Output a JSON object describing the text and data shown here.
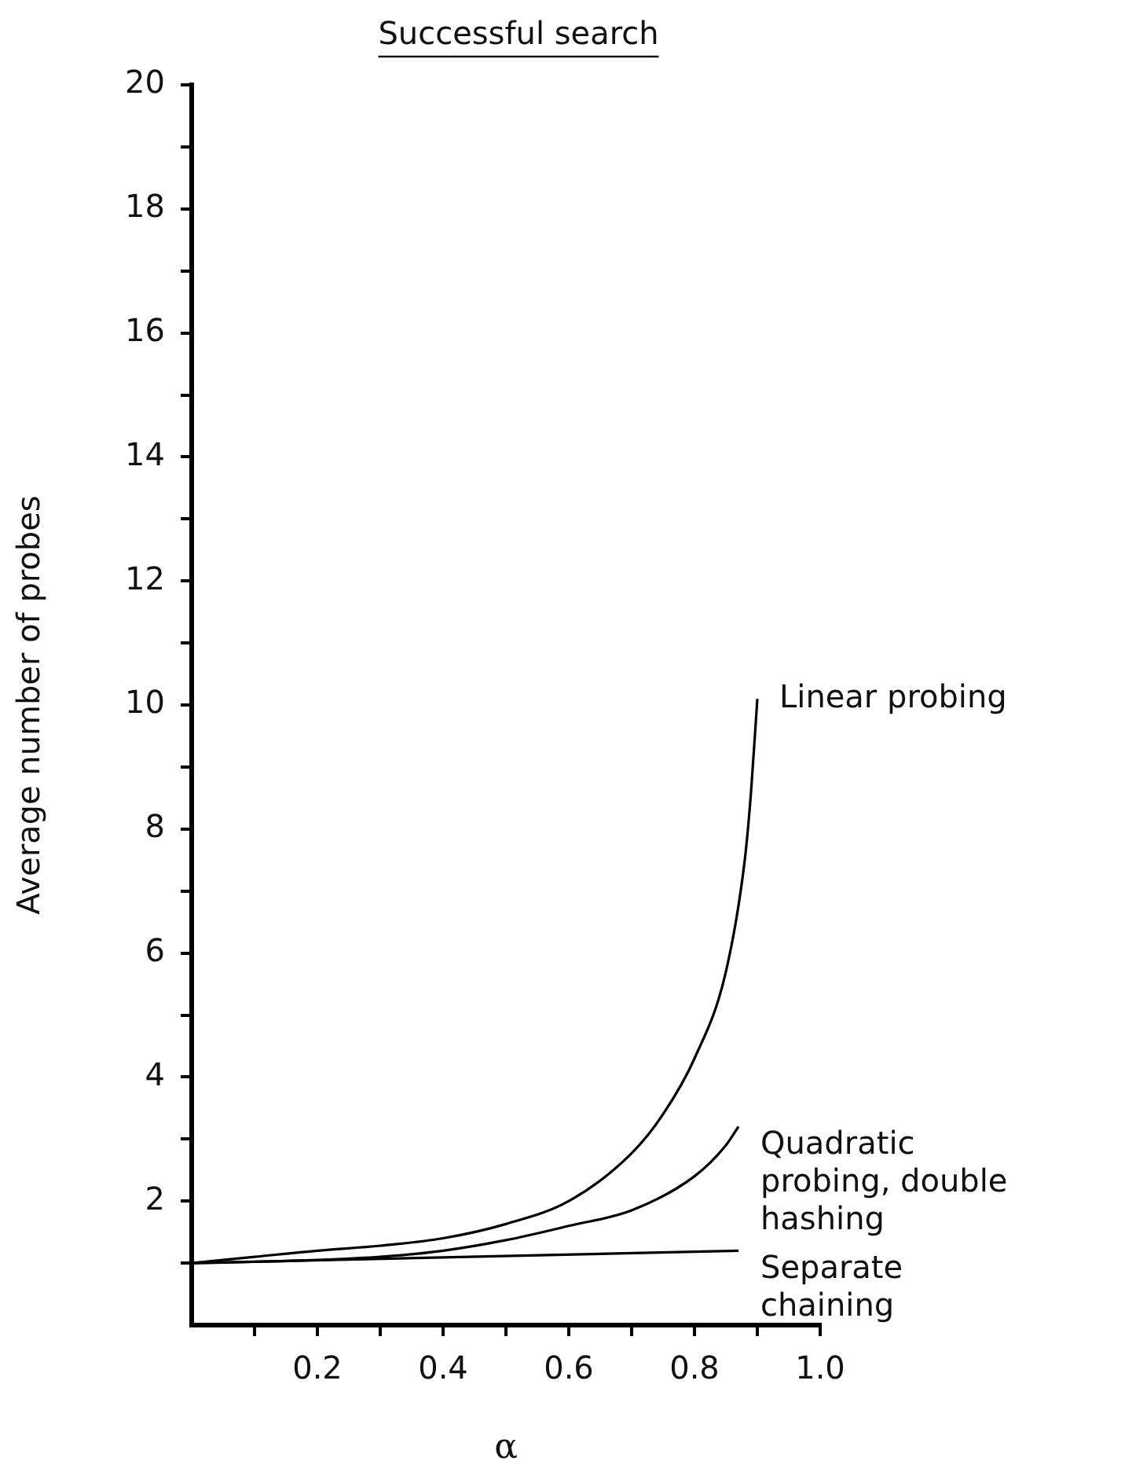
{
  "chart_data": {
    "type": "line",
    "title": "Successful search",
    "xlabel": "α",
    "ylabel": "Average number of probes",
    "xlim": [
      0,
      1.0
    ],
    "ylim": [
      0,
      20
    ],
    "xticks": [
      {
        "value": 0.1,
        "label": null
      },
      {
        "value": 0.2,
        "label": "0.2"
      },
      {
        "value": 0.3,
        "label": null
      },
      {
        "value": 0.4,
        "label": "0.4"
      },
      {
        "value": 0.5,
        "label": null
      },
      {
        "value": 0.6,
        "label": "0.6"
      },
      {
        "value": 0.7,
        "label": null
      },
      {
        "value": 0.8,
        "label": "0.8"
      },
      {
        "value": 0.9,
        "label": null
      },
      {
        "value": 1.0,
        "label": "1.0"
      }
    ],
    "yticks": [
      {
        "value": 1,
        "label": null
      },
      2,
      {
        "value": 3,
        "label": null
      },
      4,
      {
        "value": 5,
        "label": null
      },
      6,
      {
        "value": 7,
        "label": null
      },
      8,
      {
        "value": 9,
        "label": null
      },
      10,
      {
        "value": 11,
        "label": null
      },
      12,
      {
        "value": 13,
        "label": null
      },
      14,
      {
        "value": 15,
        "label": null
      },
      16,
      {
        "value": 17,
        "label": null
      },
      18,
      {
        "value": 19,
        "label": null
      },
      20
    ],
    "grid": false,
    "legend": false,
    "marker": "none",
    "line_style": "solid",
    "series": [
      {
        "name": "Linear probing",
        "color": "#000000",
        "x": [
          0,
          0.1,
          0.2,
          0.3,
          0.4,
          0.5,
          0.6,
          0.7,
          0.75,
          0.8,
          0.85,
          0.88,
          0.89,
          0.9
        ],
        "values": [
          1.0,
          1.1,
          1.2,
          1.28,
          1.4,
          1.63,
          2.0,
          2.77,
          3.4,
          4.3,
          5.7,
          7.5,
          8.6,
          10.1
        ]
      },
      {
        "name": "Quadratic probing, double hashing",
        "color": "#000000",
        "x": [
          0,
          0.1,
          0.2,
          0.3,
          0.4,
          0.5,
          0.6,
          0.7,
          0.8,
          0.85,
          0.87
        ],
        "values": [
          1.0,
          1.02,
          1.05,
          1.1,
          1.2,
          1.37,
          1.6,
          1.85,
          2.4,
          2.9,
          3.2
        ]
      },
      {
        "name": "Separate chaining",
        "color": "#000000",
        "x": [
          0,
          0.87
        ],
        "values": [
          1.0,
          1.2
        ]
      }
    ]
  }
}
